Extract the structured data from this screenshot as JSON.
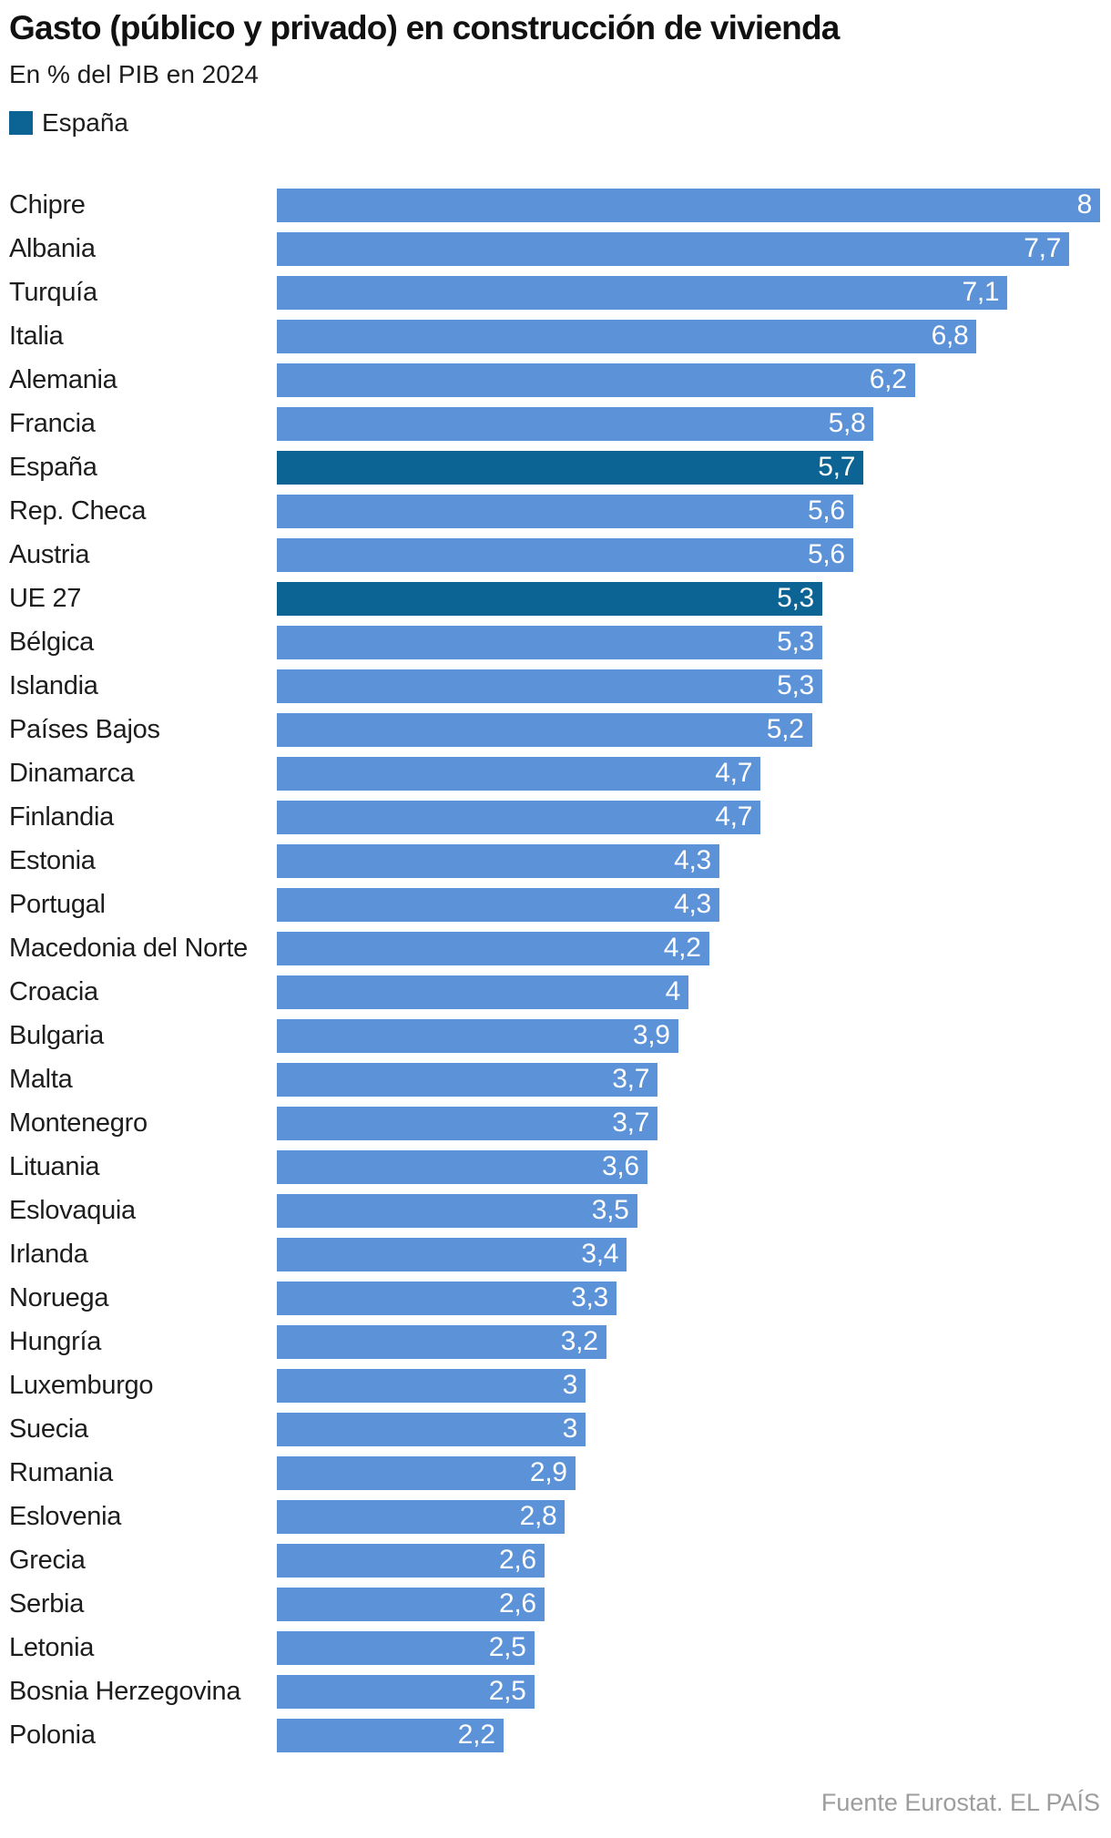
{
  "header": {
    "title": "Gasto (público y privado) en construcción de vivienda",
    "subtitle": "En % del PIB en 2024"
  },
  "legend": {
    "label": "España"
  },
  "colors": {
    "bar": "#5b92d8",
    "highlight": "#0b6493",
    "value_text": "#ffffff",
    "footer_text": "#9d9d9d"
  },
  "footer": {
    "source": "Fuente Eurostat. EL PAÍS"
  },
  "chart_data": {
    "type": "bar",
    "orientation": "horizontal",
    "title": "Gasto (público y privado) en construcción de vivienda",
    "subtitle": "En % del PIB en 2024",
    "unit": "% del PIB",
    "xlim": [
      0,
      8
    ],
    "grid": false,
    "legend_position": "top-left",
    "categories": [
      "Chipre",
      "Albania",
      "Turquía",
      "Italia",
      "Alemania",
      "Francia",
      "España",
      "Rep. Checa",
      "Austria",
      "UE 27",
      "Bélgica",
      "Islandia",
      "Países Bajos",
      "Dinamarca",
      "Finlandia",
      "Estonia",
      "Portugal",
      "Macedonia del Norte",
      "Croacia",
      "Bulgaria",
      "Malta",
      "Montenegro",
      "Lituania",
      "Eslovaquia",
      "Irlanda",
      "Noruega",
      "Hungría",
      "Luxemburgo",
      "Suecia",
      "Rumania",
      "Eslovenia",
      "Grecia",
      "Serbia",
      "Letonia",
      "Bosnia Herzegovina",
      "Polonia"
    ],
    "values": [
      8,
      7.7,
      7.1,
      6.8,
      6.2,
      5.8,
      5.7,
      5.6,
      5.6,
      5.3,
      5.3,
      5.3,
      5.2,
      4.7,
      4.7,
      4.3,
      4.3,
      4.2,
      4,
      3.9,
      3.7,
      3.7,
      3.6,
      3.5,
      3.4,
      3.3,
      3.2,
      3,
      3,
      2.9,
      2.8,
      2.6,
      2.6,
      2.5,
      2.5,
      2.2
    ],
    "value_labels": [
      "8",
      "7,7",
      "7,1",
      "6,8",
      "6,2",
      "5,8",
      "5,7",
      "5,6",
      "5,6",
      "5,3",
      "5,3",
      "5,3",
      "5,2",
      "4,7",
      "4,7",
      "4,3",
      "4,3",
      "4,2",
      "4",
      "3,9",
      "3,7",
      "3,7",
      "3,6",
      "3,5",
      "3,4",
      "3,3",
      "3,2",
      "3",
      "3",
      "2,9",
      "2,8",
      "2,6",
      "2,6",
      "2,5",
      "2,5",
      "2,2"
    ],
    "highlighted": [
      "España",
      "UE 27"
    ]
  }
}
